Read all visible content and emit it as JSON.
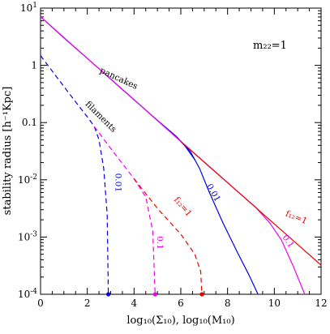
{
  "chart_data": {
    "type": "line",
    "xlabel": "log₁₀(Σ₁₀), log₁₀(M₁₀)",
    "ylabel": "stability radius [h⁻¹Kpc]",
    "annotation": "m₂₂=1",
    "xlim": [
      0,
      12
    ],
    "ylim_log10": [
      -4,
      1
    ],
    "yscale": "log",
    "x_ticks": [
      {
        "value": 0,
        "label": "0"
      },
      {
        "value": 2,
        "label": "2"
      },
      {
        "value": 4,
        "label": "4"
      },
      {
        "value": 6,
        "label": "6"
      },
      {
        "value": 8,
        "label": "8"
      },
      {
        "value": 10,
        "label": "10"
      },
      {
        "value": 12,
        "label": "12"
      }
    ],
    "y_ticks": [
      {
        "log": 1,
        "base": "10",
        "exp": "1"
      },
      {
        "log": 0,
        "base": "1",
        "exp": ""
      },
      {
        "log": -1,
        "base": "0.1",
        "exp": ""
      },
      {
        "log": -2,
        "base": "10",
        "exp": "-2"
      },
      {
        "log": -3,
        "base": "10",
        "exp": "-3"
      },
      {
        "log": -4,
        "base": "10",
        "exp": "-4"
      }
    ],
    "series": [
      {
        "label": "pancakes",
        "color": "#0000ee",
        "dash": false,
        "points": [
          [
            0,
            0.85
          ],
          [
            1,
            0.48
          ],
          [
            2,
            0.12
          ],
          [
            3,
            -0.24
          ],
          [
            4,
            -0.6
          ],
          [
            5,
            -0.96
          ],
          [
            5.8,
            -1.24
          ],
          [
            6.4,
            -1.5
          ],
          [
            6.8,
            -1.8
          ],
          [
            7.2,
            -2.2
          ],
          [
            7.8,
            -2.75
          ],
          [
            8.4,
            -3.25
          ],
          [
            8.9,
            -3.65
          ],
          [
            9.3,
            -4.0
          ]
        ],
        "label_at": [
          3.3,
          -0.27
        ],
        "label_angle": 25
      },
      {
        "label": "0.01",
        "color": "#0000ee",
        "dash": false,
        "points": [
          [
            5.8,
            -1.24
          ],
          [
            6.2,
            -1.42
          ],
          [
            6.6,
            -1.65
          ]
        ],
        "label_at": [
          7.3,
          -2.25
        ],
        "label_angle": 60
      },
      {
        "label": "0.1",
        "color": "#ee00ee",
        "dash": false,
        "points": [
          [
            0,
            0.85
          ],
          [
            2,
            0.12
          ],
          [
            4,
            -0.6
          ],
          [
            6,
            -1.33
          ],
          [
            8,
            -2.05
          ],
          [
            9.2,
            -2.48
          ],
          [
            9.8,
            -2.75
          ],
          [
            10.3,
            -3.05
          ],
          [
            10.8,
            -3.5
          ],
          [
            11.3,
            -4.0
          ]
        ],
        "label_at": [
          10.5,
          -3.1
        ],
        "label_angle": 55
      },
      {
        "label": "f₁₂=1",
        "color": "#ee0000",
        "dash": false,
        "points": [
          [
            6,
            -1.33
          ],
          [
            8,
            -2.05
          ],
          [
            10,
            -2.77
          ],
          [
            12,
            -3.49
          ]
        ],
        "label_at": [
          10.9,
          -2.7
        ],
        "label_angle": 22
      },
      {
        "label": "filaments",
        "color": "#0000ee",
        "dash": true,
        "points": [
          [
            0,
            0.17
          ],
          [
            0.5,
            -0.1
          ],
          [
            1,
            -0.37
          ],
          [
            1.5,
            -0.64
          ],
          [
            2,
            -0.9
          ],
          [
            2.3,
            -1.07
          ],
          [
            2.5,
            -1.3
          ],
          [
            2.7,
            -1.8
          ],
          [
            2.85,
            -2.6
          ],
          [
            2.9,
            -4.0
          ]
        ],
        "label_at": [
          2.5,
          -0.93
        ],
        "label_angle": 45
      },
      {
        "label": "0.01",
        "color": "#0000ee",
        "dash": true,
        "points": [],
        "label_at": [
          3.2,
          -2.05
        ],
        "label_angle": 90
      },
      {
        "label": "0.1",
        "color": "#ee00ee",
        "dash": true,
        "points": [
          [
            2.3,
            -1.07
          ],
          [
            3,
            -1.45
          ],
          [
            4,
            -1.98
          ],
          [
            4.5,
            -2.3
          ],
          [
            4.8,
            -2.9
          ],
          [
            4.9,
            -4.0
          ]
        ],
        "label_at": [
          5.0,
          -3.1
        ],
        "label_angle": 90
      },
      {
        "label": "f₁₂=1",
        "color": "#ee0000",
        "dash": true,
        "points": [
          [
            4,
            -1.98
          ],
          [
            5,
            -2.5
          ],
          [
            6,
            -2.95
          ],
          [
            6.6,
            -3.3
          ],
          [
            6.85,
            -3.6
          ],
          [
            6.9,
            -4.0
          ]
        ],
        "label_at": [
          6.0,
          -2.5
        ],
        "label_angle": 50
      }
    ],
    "end_markers": [
      {
        "x": 2.9,
        "color": "#0000ee"
      },
      {
        "x": 4.9,
        "color": "#ee00ee"
      },
      {
        "x": 6.9,
        "color": "#ee0000"
      }
    ]
  }
}
